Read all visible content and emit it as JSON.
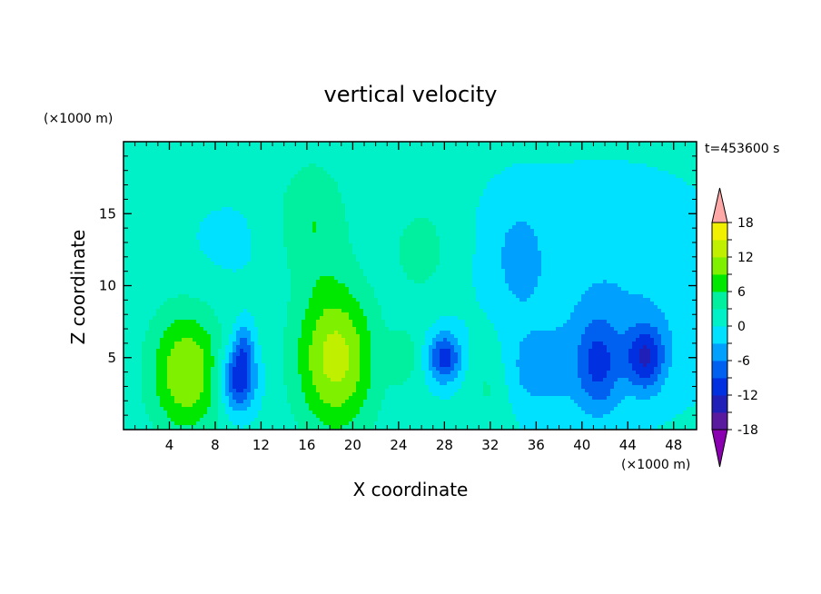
{
  "chart_data": {
    "type": "heatmap",
    "title": "vertical velocity",
    "xlabel": "X coordinate",
    "ylabel": "Z coordinate",
    "x_unit": "(×1000 m)",
    "y_unit": "(×1000 m)",
    "time_label": "t=453600 s",
    "xlim": [
      0,
      50
    ],
    "ylim": [
      0,
      20
    ],
    "xticks": [
      4,
      8,
      12,
      16,
      20,
      24,
      28,
      32,
      36,
      40,
      44,
      48
    ],
    "yticks": [
      5,
      10,
      15
    ],
    "grid": false,
    "colorbar": {
      "range": [
        -21,
        21
      ],
      "step": 3,
      "tick_labels": [
        "18",
        "12",
        "6",
        "0",
        "-6",
        "-12",
        "-18"
      ],
      "tick_values": [
        18,
        12,
        6,
        0,
        -6,
        -12,
        -18
      ],
      "colors": [
        "#8a00b0",
        "#5a1aa0",
        "#2020b8",
        "#0030e0",
        "#0060f0",
        "#00a0ff",
        "#00e0ff",
        "#00f0c8",
        "#00f0a0",
        "#00e800",
        "#7ff000",
        "#c0f000",
        "#f0f000",
        "#f0c800",
        "#ff9600",
        "#ff6000",
        "#ff2020",
        "#e01010",
        "#ffb0b0"
      ],
      "over_color": "#ffa8a8",
      "under_color": "#8a00b0"
    },
    "field": {
      "background": 1.0,
      "features": [
        {
          "x": 5.5,
          "z": 4.0,
          "sx": 2.2,
          "sz": 3.0,
          "amp": 11.0
        },
        {
          "x": 10.0,
          "z": 3.5,
          "sx": 1.1,
          "sz": 1.6,
          "amp": -13.0
        },
        {
          "x": 10.5,
          "z": 6.0,
          "sx": 0.6,
          "sz": 1.2,
          "amp": -6.0
        },
        {
          "x": 18.5,
          "z": 5.0,
          "sx": 2.4,
          "sz": 3.6,
          "amp": 12.5
        },
        {
          "x": 16.5,
          "z": 14.5,
          "sx": 2.2,
          "sz": 3.0,
          "amp": 5.0
        },
        {
          "x": 26.0,
          "z": 12.5,
          "sx": 2.0,
          "sz": 2.5,
          "amp": 4.0
        },
        {
          "x": 28.0,
          "z": 5.0,
          "sx": 1.0,
          "sz": 1.2,
          "amp": -11.0
        },
        {
          "x": 24.5,
          "z": 5.0,
          "sx": 1.0,
          "sz": 1.5,
          "amp": 3.5
        },
        {
          "x": 32.0,
          "z": 3.5,
          "sx": 1.5,
          "sz": 2.3,
          "amp": 5.0
        },
        {
          "x": 35.5,
          "z": 4.0,
          "sx": 3.5,
          "sz": 2.2,
          "amp": -4.5
        },
        {
          "x": 34.5,
          "z": 12.0,
          "sx": 1.5,
          "sz": 2.5,
          "amp": -4.0
        },
        {
          "x": 41.5,
          "z": 4.5,
          "sx": 1.3,
          "sz": 2.4,
          "amp": -8.0
        },
        {
          "x": 45.5,
          "z": 5.0,
          "sx": 1.2,
          "sz": 1.6,
          "amp": -11.0
        },
        {
          "x": 44.0,
          "z": 8.0,
          "sx": 6.0,
          "sz": 5.0,
          "amp": -3.0
        },
        {
          "x": 9.0,
          "z": 13.0,
          "sx": 3.0,
          "sz": 2.5,
          "amp": -1.5
        },
        {
          "x": 38.0,
          "z": 13.0,
          "sx": 12.0,
          "sz": 6.0,
          "amp": -1.2
        }
      ]
    }
  }
}
